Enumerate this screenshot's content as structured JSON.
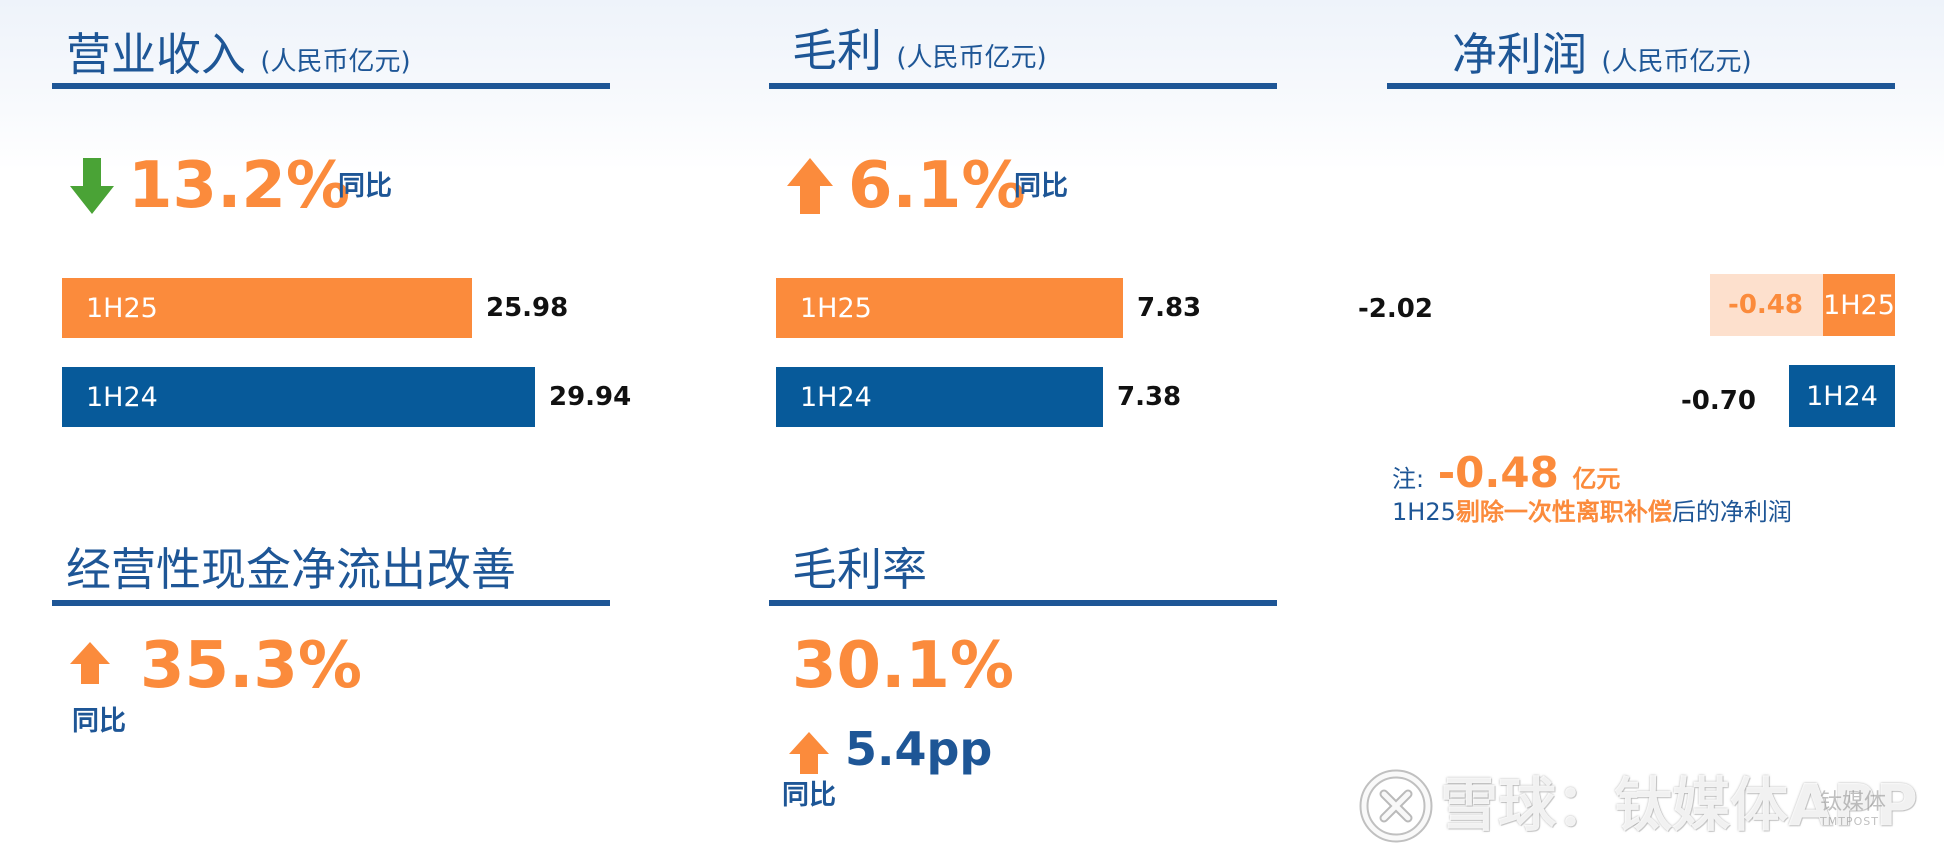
{
  "revenue": {
    "title": "营业收入",
    "unit": "(人民币亿元)",
    "change_pct": "13.2%",
    "direction": "down",
    "yoy_label": "同比",
    "chart_data": {
      "type": "bar",
      "categories": [
        "1H25",
        "1H24"
      ],
      "values": [
        25.98,
        29.94
      ],
      "value_labels": [
        "25.98",
        "29.94"
      ],
      "colors": [
        "#fb8b3c",
        "#075a9a"
      ],
      "xlim": [
        0,
        35
      ]
    }
  },
  "gross_profit": {
    "title": "毛利",
    "unit": "(人民币亿元)",
    "change_pct": "6.1%",
    "direction": "up",
    "yoy_label": "同比",
    "chart_data": {
      "type": "bar",
      "categories": [
        "1H25",
        "1H24"
      ],
      "values": [
        7.83,
        7.38
      ],
      "value_labels": [
        "7.83",
        "7.38"
      ],
      "colors": [
        "#fb8b3c",
        "#075a9a"
      ],
      "xlim": [
        0,
        9.1
      ]
    }
  },
  "net_profit": {
    "title": "净利润",
    "unit": "(人民币亿元)",
    "chart_data": {
      "type": "bar",
      "categories": [
        "1H25",
        "1H24"
      ],
      "values": [
        -2.02,
        -0.7
      ],
      "value_labels": [
        "-2.02",
        "-0.70"
      ],
      "adjusted": {
        "category": "1H25",
        "value": -0.48,
        "label": "-0.48"
      },
      "colors": [
        "#fb8b3c",
        "#075a9a"
      ],
      "adjusted_color": "#fde0cd",
      "xlim": [
        -2.02,
        0
      ]
    },
    "note": {
      "prefix": "注:",
      "value": "-0.48",
      "unit": "亿元",
      "line2_pre": "1H25",
      "line2_highlight": "剔除一次性离职补偿",
      "line2_post": "后的净利润"
    }
  },
  "cash_flow": {
    "title": "经营性现金净流出改善",
    "change_pct": "35.3%",
    "direction": "up",
    "yoy_label": "同比"
  },
  "gross_margin": {
    "title": "毛利率",
    "value": "30.1%",
    "change": "5.4pp",
    "direction": "up",
    "yoy_label": "同比"
  },
  "watermark": {
    "text": "雪球：钛媒体APP",
    "logo": "snowball-logo-icon",
    "brand_text": "钛媒体",
    "brand_sub": "TMTPOST"
  },
  "colors": {
    "accent_orange": "#fb8b3c",
    "brand_blue": "#1e5696",
    "bar_blue": "#075a9a",
    "down_green": "#4aa336"
  }
}
